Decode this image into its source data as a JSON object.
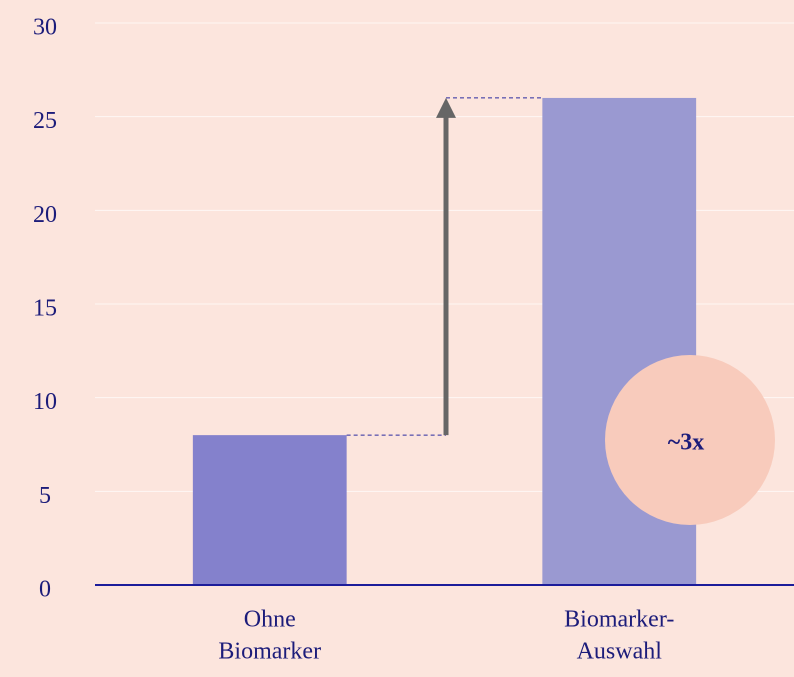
{
  "chart_data": {
    "type": "bar",
    "categories": [
      [
        "Ohne",
        "Biomarker"
      ],
      [
        "Biomarker-",
        "Auswahl"
      ]
    ],
    "values": [
      8,
      26
    ],
    "colors": [
      "#8481cc",
      "#9a99d1"
    ],
    "ylim": [
      0,
      30
    ],
    "yticks": [
      0,
      5,
      10,
      15,
      20,
      25,
      30
    ],
    "grid": true,
    "annotation": "~3x"
  }
}
